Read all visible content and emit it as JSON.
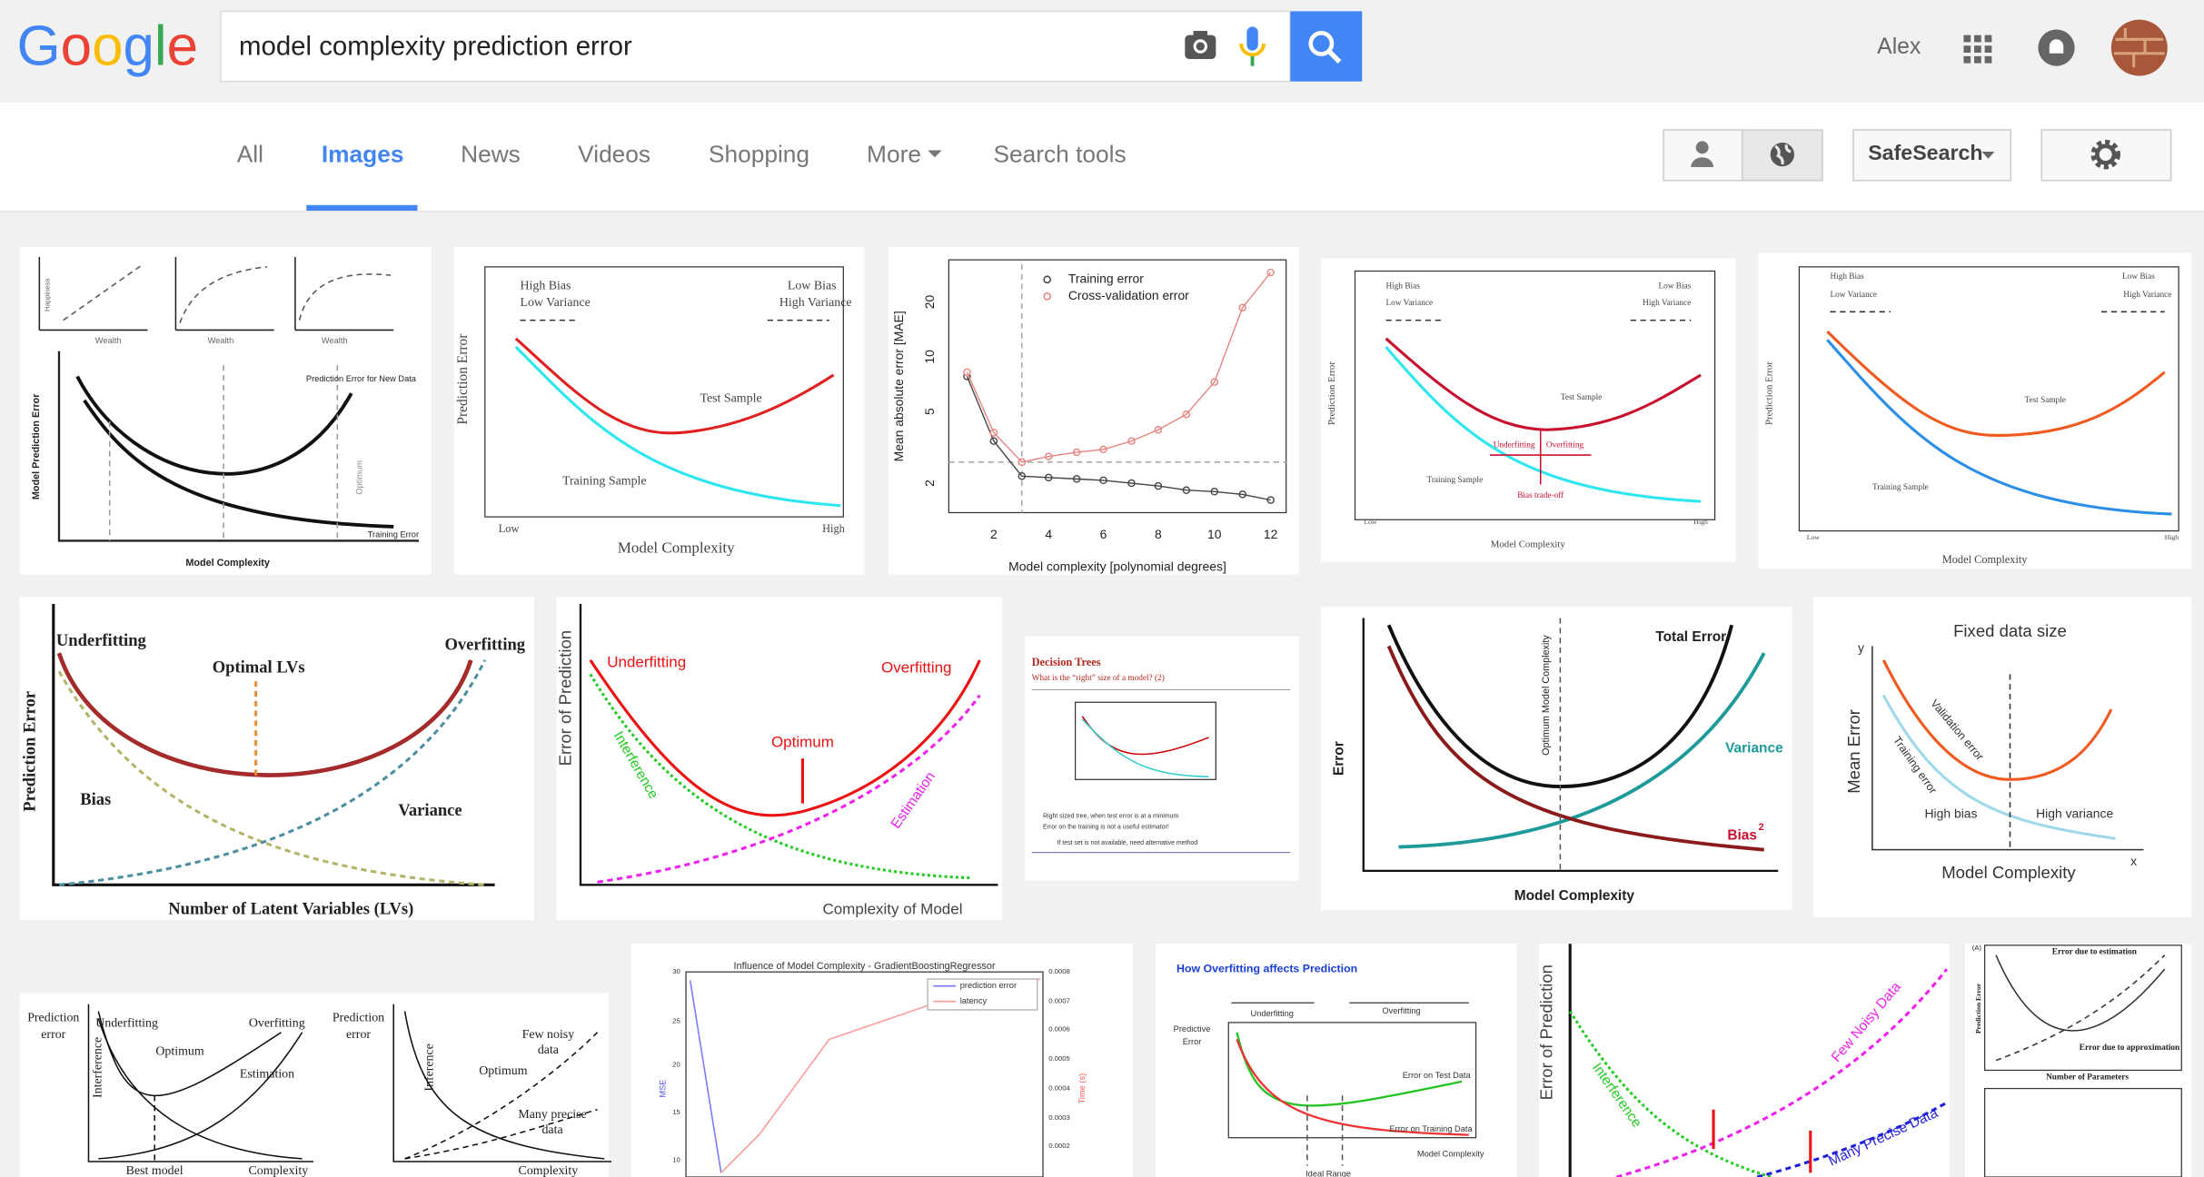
{
  "header": {
    "logo": "Google",
    "query": "model complexity prediction error",
    "user": "Alex"
  },
  "tabs": [
    "All",
    "Images",
    "News",
    "Videos",
    "Shopping",
    "More",
    "Search tools"
  ],
  "tools": {
    "safesearch": "SafeSearch"
  },
  "results": [
    {
      "texts": [
        "Happiness",
        "Wealth",
        "Wealth",
        "Wealth",
        "Model Prediction Error",
        "Prediction Error for New Data",
        "Optimum",
        "Training Error",
        "Model Complexity"
      ]
    },
    {
      "texts": [
        "High Bias",
        "Low Variance",
        "Low Bias",
        "High Variance",
        "Prediction Error",
        "Test Sample",
        "Training Sample",
        "Low",
        "High",
        "Model Complexity"
      ]
    },
    {
      "texts": [
        "Training error",
        "Cross-validation error",
        "Mean absolute error [MAE]",
        "20",
        "10",
        "5",
        "2",
        "2",
        "4",
        "6",
        "8",
        "10",
        "12",
        "Model complexity [polynomial degrees]"
      ]
    },
    {
      "texts": [
        "High Bias",
        "Low Variance",
        "Low Bias",
        "High Variance",
        "Prediction Error",
        "Test Sample",
        "Underfitting",
        "Overfitting",
        "Training Sample",
        "Bias trade-off",
        "Low",
        "High",
        "Model Complexity"
      ]
    },
    {
      "texts": [
        "High Bias",
        "Low Variance",
        "Low Bias",
        "High Variance",
        "Prediction Error",
        "Test Sample",
        "Training Sample",
        "Low",
        "High",
        "Model Complexity"
      ]
    },
    {
      "texts": [
        "Underfitting",
        "Optimal LVs",
        "Overfitting",
        "Prediction Error",
        "Bias",
        "Variance",
        "Number of Latent Variables (LVs)"
      ]
    },
    {
      "texts": [
        "Error of Prediction",
        "Underfitting",
        "Overfitting",
        "Optimum",
        "Interference",
        "Estimation",
        "Complexity of Model"
      ]
    },
    {
      "texts": [
        "Decision Trees",
        "What is the “right” size of a model? (2)",
        "Right sized tree, when test error is at a minimum",
        "Error on the training is not a useful estimator!",
        "If test set is not available, need alternative method"
      ]
    },
    {
      "texts": [
        "Total Error",
        "Optimum Model Complexity",
        "Error",
        "Variance",
        "Bias",
        "2",
        "Model Complexity"
      ]
    },
    {
      "texts": [
        "Fixed data size",
        "y",
        "Mean Error",
        "Validation error",
        "Training error",
        "High bias",
        "High variance",
        "x",
        "Model Complexity"
      ]
    },
    {
      "texts": [
        "Prediction",
        "error",
        "Underfitting",
        "Overfitting",
        "Optimum",
        "Interference",
        "Estimation",
        "Best model",
        "Complexity",
        "Prediction",
        "error",
        "Inference",
        "Few noisy",
        "data",
        "Optimum",
        "Many precise",
        "data",
        "Complexity"
      ]
    },
    {
      "texts": [
        "Influence of Model Complexity - GradientBoostingRegressor",
        "prediction error",
        "latency",
        "MSE",
        "Time (s)",
        "30",
        "25",
        "20",
        "15",
        "10",
        "0.0008",
        "0.0007",
        "0.0006",
        "0.0005",
        "0.0004",
        "0.0003",
        "0.0002"
      ]
    },
    {
      "texts": [
        "How Overfitting affects Prediction",
        "Underfitting",
        "Overfitting",
        "Predictive",
        "Error",
        "Error on Test Data",
        "Error on Training Data",
        "Model Complexity",
        "Ideal Range"
      ]
    },
    {
      "texts": [
        "Error of Prediction",
        "Interference",
        "Few Noisy Data",
        "Many Precise Data"
      ]
    },
    {
      "texts": [
        "(A)",
        "Error due to estimation",
        "Prediction Error",
        "Error due to approximation",
        "Number of Parameters"
      ]
    }
  ]
}
